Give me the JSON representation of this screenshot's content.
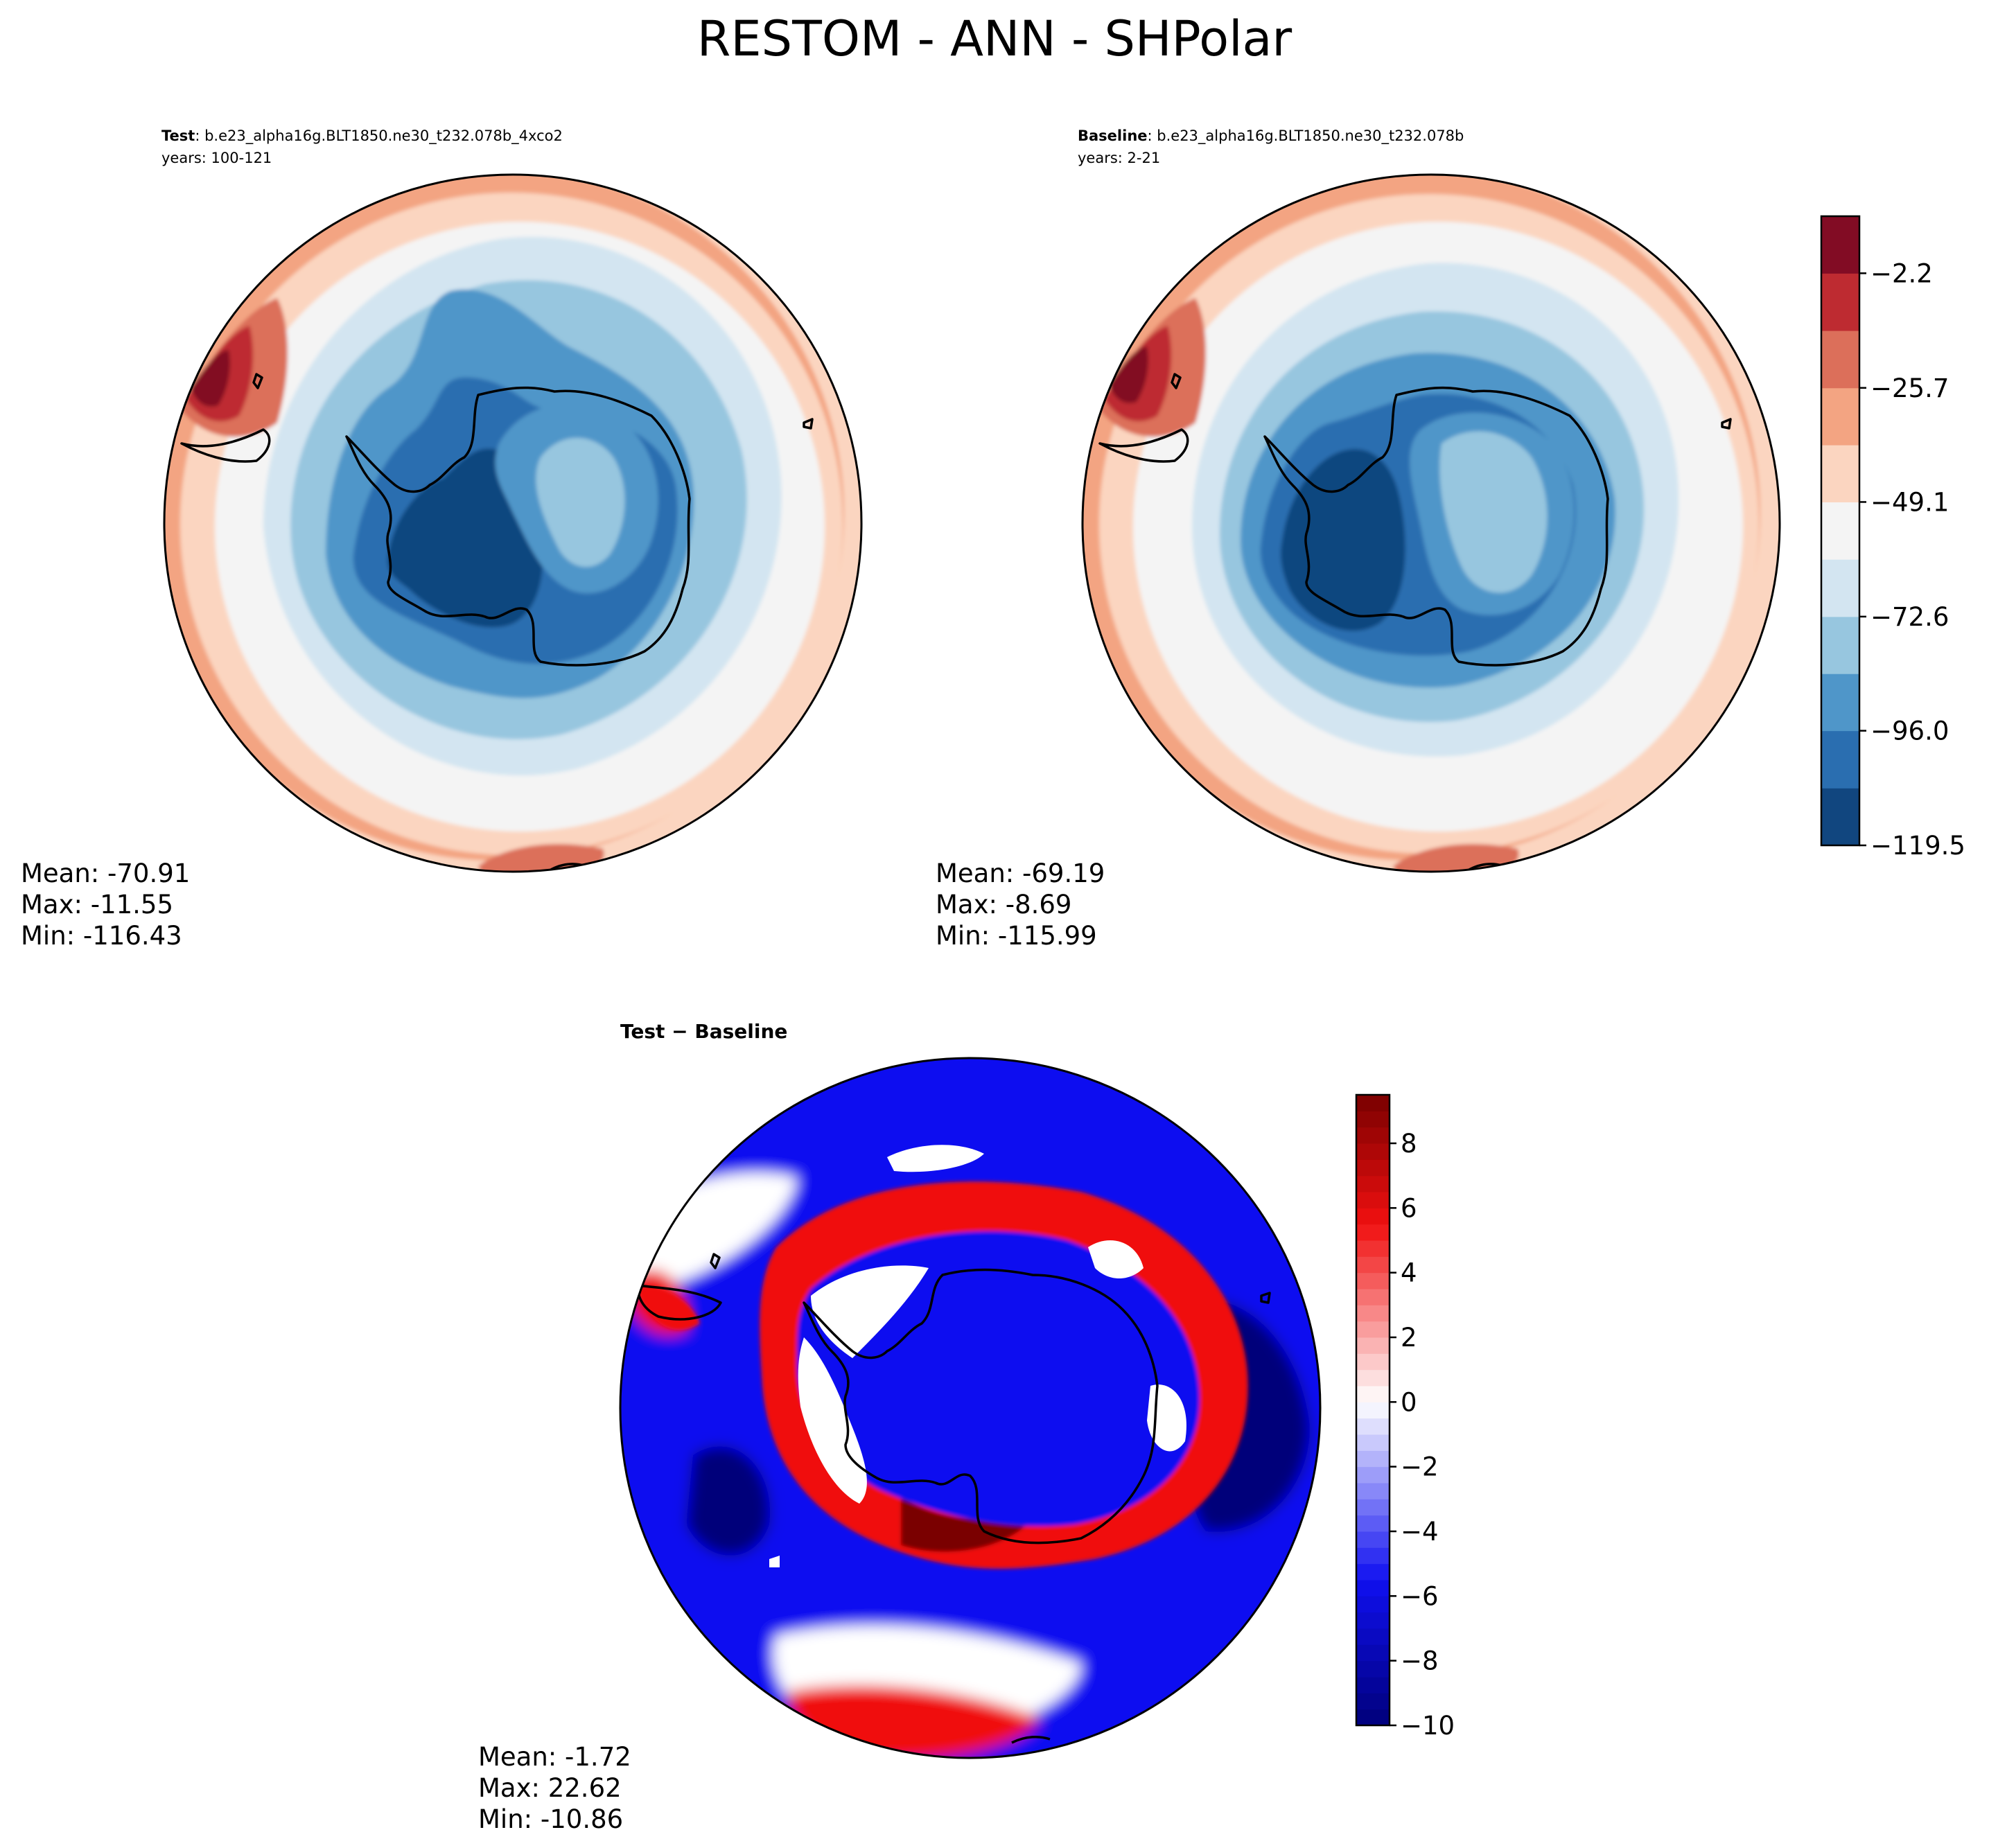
{
  "figure": {
    "title": "RESTOM - ANN - SHPolar"
  },
  "panels": {
    "test": {
      "label_bold": "Test",
      "label_rest": ": b.e23_alpha16g.BLT1850.ne30_t232.078b_4xco2",
      "years": "years: 100-121",
      "stats": {
        "mean": "Mean: -70.91",
        "max": "Max: -11.55",
        "min": "Min: -116.43"
      }
    },
    "baseline": {
      "label_bold": "Baseline",
      "label_rest": ": b.e23_alpha16g.BLT1850.ne30_t232.078b",
      "years": "years: 2-21",
      "stats": {
        "mean": "Mean: -69.19",
        "max": "Max: -8.69",
        "min": "Min: -115.99"
      }
    },
    "diff": {
      "label": "Test − Baseline",
      "stats": {
        "mean": "Mean: -1.72",
        "max": "Max: 22.62",
        "min": "Min: -10.86"
      }
    }
  },
  "colors": {
    "levels": [
      "#11467f",
      "#2a6eb0",
      "#4f96c9",
      "#97c6df",
      "#d3e5f1",
      "#f4f4f4",
      "#fbd5c0",
      "#f3a482",
      "#dc6f5a",
      "#be2b31",
      "#820c24"
    ],
    "diff_neg_strong": "#00007a",
    "diff_neg": "#1010f0",
    "diff_white": "#ffffff",
    "diff_pos": "#f01010",
    "diff_pos_strong": "#7a0000",
    "coast": "#000000"
  },
  "chart_data": [
    {
      "type": "heatmap",
      "name": "test",
      "projection": "south-polar-stereographic",
      "colorbar": null,
      "stats": {
        "mean": -70.91,
        "max": -11.55,
        "min": -116.43
      }
    },
    {
      "type": "heatmap",
      "name": "baseline",
      "projection": "south-polar-stereographic",
      "colorbar": {
        "levels": [
          -119.5,
          -107.75,
          -96.0,
          -84.3,
          -72.6,
          -60.85,
          -49.1,
          -37.4,
          -25.7,
          -13.95,
          -2.2,
          9.5
        ],
        "ticks": [
          -119.5,
          -96.0,
          -72.6,
          -49.1,
          -25.7,
          -2.2
        ],
        "tick_labels": [
          "−119.5",
          "−96.0",
          "−72.6",
          "−49.1",
          "−25.7",
          "−2.2"
        ]
      },
      "stats": {
        "mean": -69.19,
        "max": -8.69,
        "min": -115.99
      }
    },
    {
      "type": "heatmap",
      "name": "difference",
      "projection": "south-polar-stereographic",
      "colorbar": {
        "range": [
          -10,
          9.5
        ],
        "ticks": [
          -10,
          -8,
          -6,
          -4,
          -2,
          0,
          2,
          4,
          6,
          8
        ],
        "tick_labels": [
          "−10",
          "−8",
          "−6",
          "−4",
          "−2",
          "0",
          "2",
          "4",
          "6",
          "8"
        ]
      },
      "stats": {
        "mean": -1.72,
        "max": 22.62,
        "min": -10.86
      }
    }
  ]
}
